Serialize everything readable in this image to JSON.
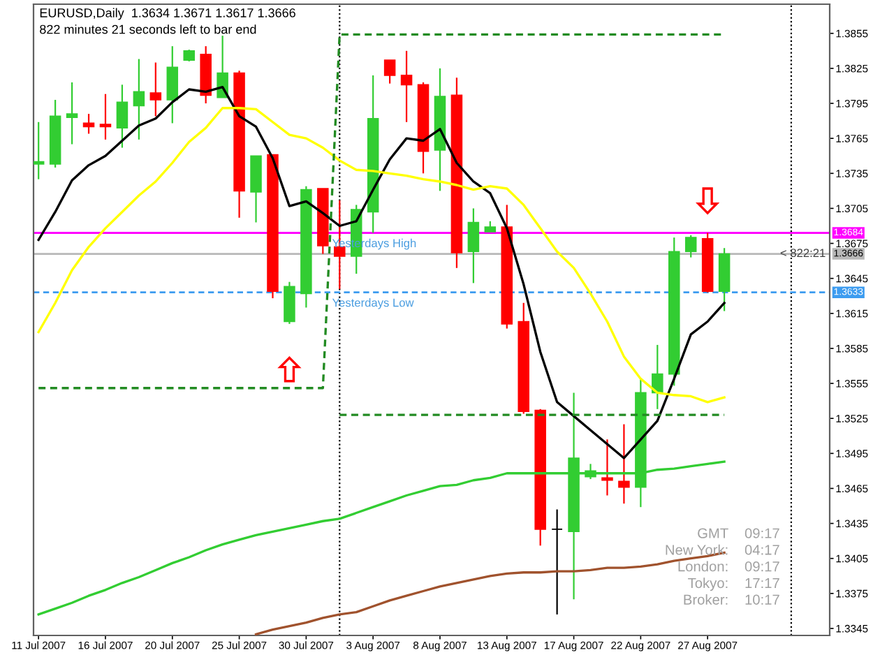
{
  "chart_data": {
    "type": "candlestick",
    "title": "EURUSD,Daily  1.3634 1.3671 1.3617 1.3666",
    "subtitle": "822 minutes 21 seconds left to bar end",
    "categories": [
      "11 Jul 2007",
      null,
      null,
      null,
      "16 Jul 2007",
      null,
      null,
      null,
      "20 Jul 2007",
      null,
      null,
      null,
      "25 Jul 2007",
      null,
      null,
      null,
      "30 Jul 2007",
      null,
      null,
      null,
      "3 Aug 2007",
      null,
      null,
      null,
      "8 Aug 2007",
      null,
      null,
      null,
      "13 Aug 2007",
      null,
      null,
      null,
      "17 Aug 2007",
      null,
      null,
      null,
      "22 Aug 2007",
      null,
      null,
      null,
      "27 Aug 2007",
      null
    ],
    "ylim": [
      1.3339,
      1.388
    ],
    "yticks": [
      1.3345,
      1.3375,
      1.3405,
      1.3435,
      1.3465,
      1.3495,
      1.3525,
      1.3555,
      1.3585,
      1.3615,
      1.3645,
      1.3675,
      1.3705,
      1.3735,
      1.3765,
      1.3795,
      1.3825,
      1.3855
    ],
    "ohlc": [
      [
        1.3743,
        1.3779,
        1.373,
        1.3745
      ],
      [
        1.3743,
        1.3798,
        1.374,
        1.3784
      ],
      [
        1.3783,
        1.3813,
        1.376,
        1.3786
      ],
      [
        1.3778,
        1.3786,
        1.3769,
        1.3775
      ],
      [
        1.3777,
        1.3803,
        1.3764,
        1.3775
      ],
      [
        1.3774,
        1.3811,
        1.3757,
        1.3796
      ],
      [
        1.3793,
        1.3833,
        1.3764,
        1.3805
      ],
      [
        1.3804,
        1.383,
        1.3784,
        1.3798
      ],
      [
        1.3798,
        1.3844,
        1.3778,
        1.3826
      ],
      [
        1.3832,
        1.3841,
        1.3831,
        1.384
      ],
      [
        1.3837,
        1.3844,
        1.3795,
        1.3802
      ],
      [
        1.38,
        1.3853,
        1.38,
        1.3821
      ],
      [
        1.3821,
        1.3823,
        1.3697,
        1.372
      ],
      [
        1.3719,
        1.375,
        1.3693,
        1.375
      ],
      [
        1.3751,
        1.3751,
        1.3628,
        1.3634
      ],
      [
        1.3608,
        1.3642,
        1.3606,
        1.3638
      ],
      [
        1.3632,
        1.3724,
        1.362,
        1.3721
      ],
      [
        1.3722,
        1.3722,
        1.3666,
        1.3673
      ],
      [
        1.3672,
        1.3712,
        1.3636,
        1.3664
      ],
      [
        1.3664,
        1.3708,
        1.3649,
        1.3704
      ],
      [
        1.3702,
        1.3819,
        1.3684,
        1.3782
      ],
      [
        1.3832,
        1.3832,
        1.3812,
        1.3819
      ],
      [
        1.3819,
        1.384,
        1.3779,
        1.3811
      ],
      [
        1.3811,
        1.3813,
        1.3735,
        1.3754
      ],
      [
        1.3755,
        1.3825,
        1.372,
        1.3801
      ],
      [
        1.3802,
        1.3817,
        1.3654,
        1.3667
      ],
      [
        1.3668,
        1.3705,
        1.3641,
        1.3693
      ],
      [
        1.3685,
        1.3694,
        1.3685,
        1.3689
      ],
      [
        1.3689,
        1.3708,
        1.3602,
        1.3606
      ],
      [
        1.3608,
        1.3624,
        1.3529,
        1.3531
      ],
      [
        1.3532,
        1.3533,
        1.3416,
        1.343
      ],
      [
        1.343,
        1.3447,
        1.3357,
        1.343
      ],
      [
        1.3428,
        1.3547,
        1.337,
        1.3491
      ],
      [
        1.3475,
        1.3486,
        1.3473,
        1.348
      ],
      [
        1.3474,
        1.3507,
        1.3459,
        1.3472
      ],
      [
        1.3471,
        1.352,
        1.3452,
        1.3466
      ],
      [
        1.3466,
        1.3559,
        1.3449,
        1.3547
      ],
      [
        1.3547,
        1.3588,
        1.3533,
        1.3563
      ],
      [
        1.3563,
        1.368,
        1.3553,
        1.3668
      ],
      [
        1.3668,
        1.3682,
        1.3663,
        1.368
      ],
      [
        1.3679,
        1.3684,
        1.3633,
        1.3634
      ],
      [
        1.3634,
        1.3671,
        1.3617,
        1.3666
      ]
    ],
    "colors": [
      "#32cd32",
      "#32cd32",
      "#32cd32",
      "#ff0000",
      "#ff0000",
      "#32cd32",
      "#32cd32",
      "#ff0000",
      "#32cd32",
      "#32cd32",
      "#ff0000",
      "#32cd32",
      "#ff0000",
      "#32cd32",
      "#ff0000",
      "#32cd32",
      "#32cd32",
      "#ff0000",
      "#ff0000",
      "#32cd32",
      "#32cd32",
      "#ff0000",
      "#ff0000",
      "#ff0000",
      "#32cd32",
      "#ff0000",
      "#32cd32",
      "#32cd32",
      "#ff0000",
      "#ff0000",
      "#ff0000",
      "#000000",
      "#32cd32",
      "#32cd32",
      "#ff0000",
      "#ff0000",
      "#32cd32",
      "#32cd32",
      "#32cd32",
      "#32cd32",
      "#ff0000",
      "#32cd32"
    ],
    "series": [
      {
        "type": "line",
        "color": "#000000",
        "values": [
          1.3678,
          1.3702,
          1.3729,
          1.3742,
          1.375,
          1.3763,
          1.3776,
          1.3782,
          1.3796,
          1.3807,
          1.3805,
          1.3809,
          1.3784,
          1.3775,
          1.3748,
          1.3707,
          1.3711,
          1.3701,
          1.369,
          1.3694,
          1.3721,
          1.3747,
          1.3765,
          1.3763,
          1.3773,
          1.3744,
          1.3728,
          1.3718,
          1.3688,
          1.364,
          1.3582,
          1.3539,
          1.3527,
          1.3515,
          1.3503,
          1.3491,
          1.3507,
          1.3523,
          1.3559,
          1.3597,
          1.3608,
          1.3624
        ]
      },
      {
        "type": "line",
        "color": "#ffff00",
        "values": [
          1.3599,
          1.3624,
          1.3652,
          1.3672,
          1.3688,
          1.3702,
          1.3716,
          1.3728,
          1.3744,
          1.3762,
          1.3774,
          1.3791,
          1.3791,
          1.379,
          1.3779,
          1.3768,
          1.3765,
          1.3757,
          1.3746,
          1.3738,
          1.3737,
          1.3735,
          1.3733,
          1.373,
          1.3728,
          1.3725,
          1.3721,
          1.3724,
          1.3722,
          1.3708,
          1.3688,
          1.3668,
          1.3654,
          1.3632,
          1.3608,
          1.3578,
          1.3559,
          1.3547,
          1.3545,
          1.3544,
          1.3539,
          1.3543
        ]
      },
      {
        "type": "line",
        "color": "#32cd32",
        "values": [
          1.3357,
          1.3362,
          1.3367,
          1.3373,
          1.3378,
          1.3384,
          1.3389,
          1.3395,
          1.3401,
          1.3406,
          1.3412,
          1.3417,
          1.3421,
          1.3425,
          1.3428,
          1.3431,
          1.3434,
          1.3437,
          1.3439,
          1.3444,
          1.3449,
          1.3454,
          1.3459,
          1.3463,
          1.3467,
          1.3468,
          1.3472,
          1.3474,
          1.3478,
          1.3478,
          1.3478,
          1.3478,
          1.3478,
          1.3478,
          1.3478,
          1.3478,
          1.3478,
          1.3481,
          1.3482,
          1.3484,
          1.3486,
          1.3488
        ]
      },
      {
        "type": "line",
        "color": "#a0522d",
        "values": [
          null,
          null,
          null,
          null,
          null,
          null,
          null,
          null,
          null,
          null,
          null,
          null,
          null,
          1.334,
          1.3344,
          1.3347,
          1.335,
          1.3354,
          1.3357,
          1.3359,
          1.3364,
          1.3369,
          1.3373,
          1.3377,
          1.3381,
          1.3384,
          1.3387,
          1.339,
          1.3392,
          1.3393,
          1.3393,
          1.3394,
          1.3394,
          1.3395,
          1.3397,
          1.3397,
          1.3398,
          1.34,
          1.3403,
          1.3405,
          1.3407,
          1.341
        ]
      },
      {
        "type": "line",
        "color": "#228b22",
        "line_style": "dashed",
        "values": [
          1.3551,
          1.3551,
          1.3551,
          1.3551,
          1.3551,
          1.3551,
          1.3551,
          1.3551,
          1.3551,
          1.3551,
          1.3551,
          1.3551,
          1.3551,
          1.3551,
          1.3551,
          1.3551,
          1.3551,
          1.3551,
          1.3854,
          1.3854,
          1.3854,
          1.3854,
          1.3854,
          1.3854,
          1.3854,
          1.3854,
          1.3854,
          1.3854,
          1.3854,
          1.3854,
          1.3854,
          1.3854,
          1.3854,
          1.3854,
          1.3854,
          1.3854,
          1.3854,
          1.3854,
          1.3854,
          1.3854,
          1.3854,
          1.3854
        ]
      },
      {
        "type": "line",
        "color": "#228b22",
        "line_style": "dashed",
        "values": [
          null,
          null,
          null,
          null,
          null,
          null,
          null,
          null,
          null,
          null,
          null,
          null,
          null,
          null,
          null,
          null,
          null,
          null,
          1.3528,
          1.3528,
          1.3528,
          1.3528,
          1.3528,
          1.3528,
          1.3528,
          1.3528,
          1.3528,
          1.3528,
          1.3528,
          1.3528,
          1.3528,
          1.3528,
          1.3528,
          1.3528,
          1.3528,
          1.3528,
          1.3528,
          1.3528,
          1.3528,
          1.3528,
          1.3528,
          1.3528
        ]
      }
    ],
    "ref_lines": [
      {
        "axis": "y",
        "value": 1.3684,
        "label": "1.3684",
        "color": "#ff00ff"
      },
      {
        "axis": "y",
        "value": 1.3633,
        "label": "1.3633",
        "color": "#3d9cf0",
        "line_style": "dashed"
      },
      {
        "axis": "y",
        "value": 1.3666,
        "label": "1.3666",
        "color": "#b8b8b8"
      }
    ],
    "annotations": [
      {
        "text": "Yesterdays High",
        "y": 1.3684
      },
      {
        "text": "Yesterdays Low",
        "y": 1.3633
      },
      {
        "text": "< 822:21",
        "y": 1.3666
      },
      "GMT 09:17",
      "New York: 04:17",
      "London: 09:17",
      "Tokyo: 17:17",
      "Broker: 10:17"
    ]
  }
}
